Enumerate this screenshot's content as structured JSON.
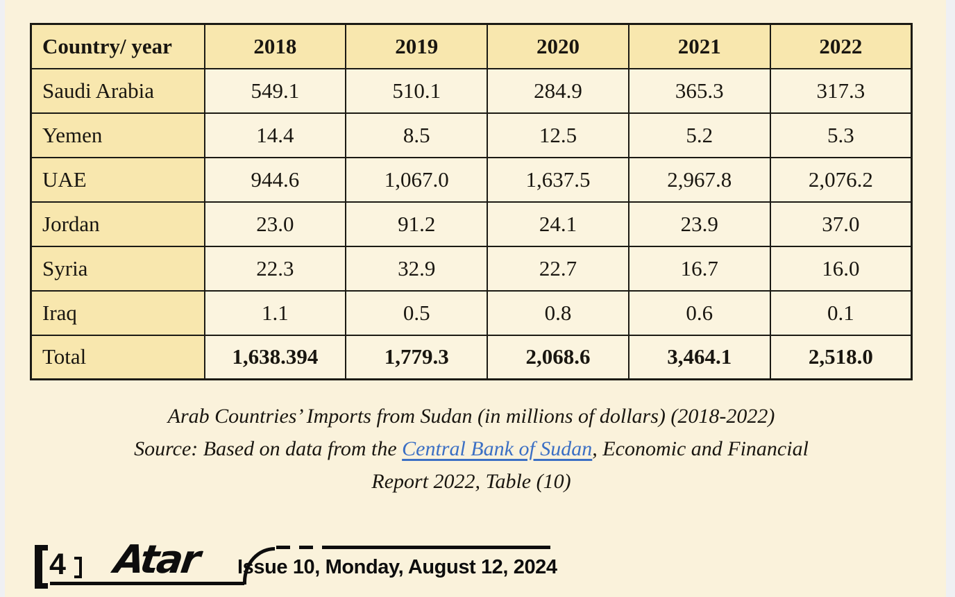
{
  "colors": {
    "edge_bg": "#eff0f3",
    "page_bg": "#faf2db",
    "header_bg": "#f8e7ae",
    "cell_bg": "#fbf4df",
    "border_ink": "#1b1a14",
    "text_ink": "#191610",
    "link_blue": "#3b6fc4",
    "footer_ink": "#0d0d0d"
  },
  "table": {
    "columns": [
      "Country/ year",
      "2018",
      "2019",
      "2020",
      "2021",
      "2022"
    ],
    "rows": [
      {
        "country": "Saudi Arabia",
        "values": [
          "549.1",
          "510.1",
          "284.9",
          "365.3",
          "317.3"
        ]
      },
      {
        "country": "Yemen",
        "values": [
          "14.4",
          "8.5",
          "12.5",
          "5.2",
          "5.3"
        ]
      },
      {
        "country": "UAE",
        "values": [
          "944.6",
          "1,067.0",
          "1,637.5",
          "2,967.8",
          "2,076.2"
        ]
      },
      {
        "country": "Jordan",
        "values": [
          "23.0",
          "91.2",
          "24.1",
          "23.9",
          "37.0"
        ]
      },
      {
        "country": "Syria",
        "values": [
          "22.3",
          "32.9",
          "22.7",
          "16.7",
          "16.0"
        ]
      },
      {
        "country": "Iraq",
        "values": [
          "1.1",
          "0.5",
          "0.8",
          "0.6",
          "0.1"
        ]
      }
    ],
    "total": {
      "label": "Total",
      "values": [
        "1,638.394",
        "1,779.3",
        "2,068.6",
        "3,464.1",
        "2,518.0"
      ]
    }
  },
  "caption": {
    "line1": "Arab Countries’ Imports from Sudan (in millions of dollars) (2018-2022)",
    "line2_prefix": "Source: Based on data from the ",
    "line2_link": "Central Bank of Sudan",
    "line2_suffix": ", Economic and Financial",
    "line3": "Report 2022, Table (10)"
  },
  "footer": {
    "bracket_open": "[",
    "page_number": "4",
    "bracket_close": "]",
    "logo": "Atar",
    "issue_line": "Issue 10, Monday, August 12, 2024"
  }
}
